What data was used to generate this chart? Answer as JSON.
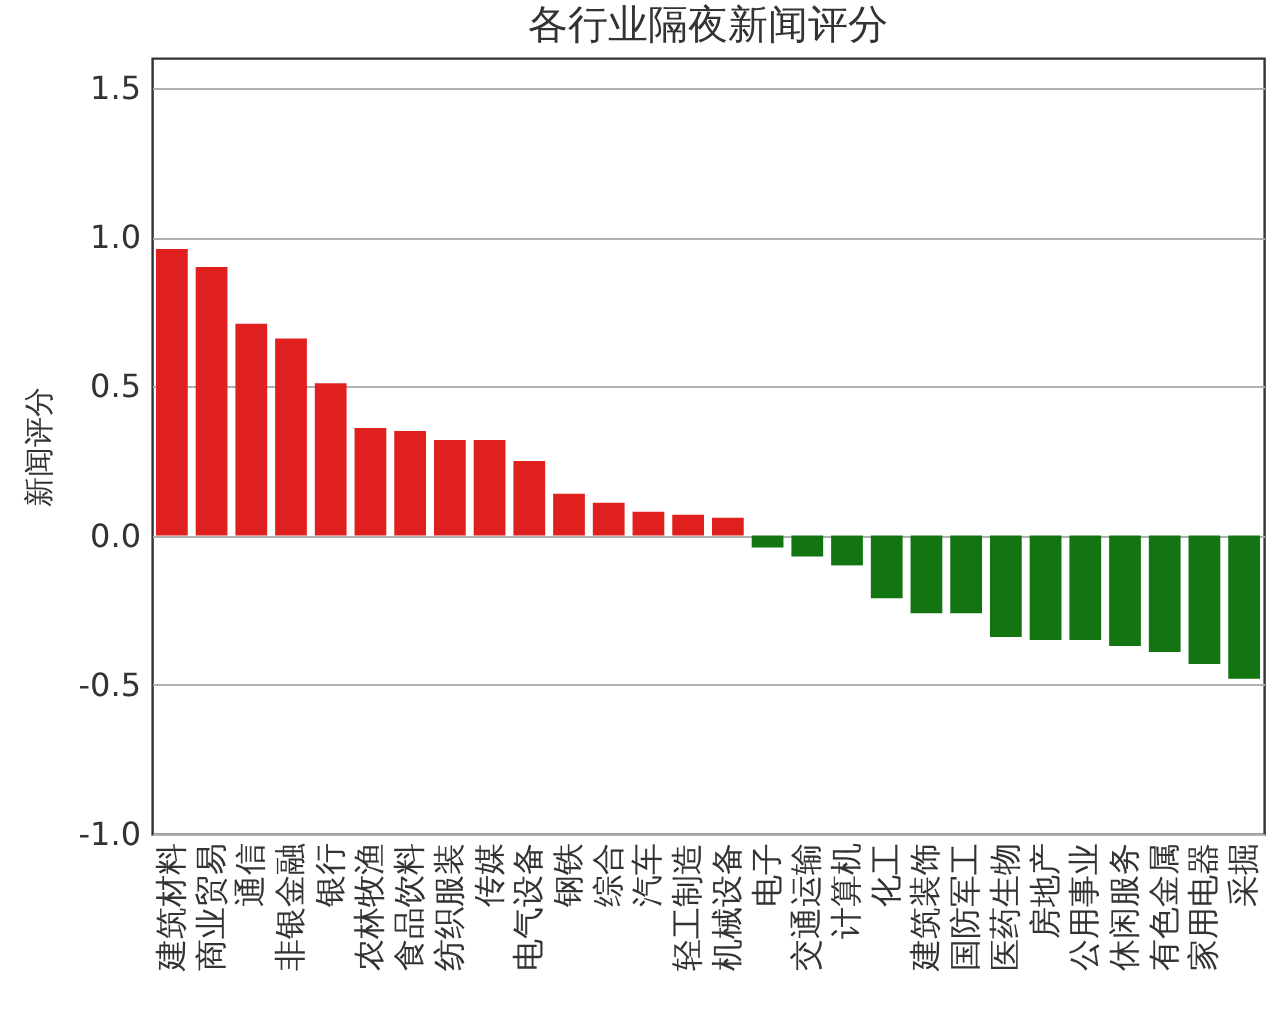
{
  "chart_data": {
    "type": "bar",
    "title": "各行业隔夜新闻评分",
    "ylabel": "新闻评分",
    "categories": [
      "建筑材料",
      "商业贸易",
      "通信",
      "非银金融",
      "银行",
      "农林牧渔",
      "食品饮料",
      "纺织服装",
      "传媒",
      "电气设备",
      "钢铁",
      "综合",
      "汽车",
      "轻工制造",
      "机械设备",
      "电子",
      "交通运输",
      "计算机",
      "化工",
      "建筑装饰",
      "国防军工",
      "医药生物",
      "房地产",
      "公用事业",
      "休闲服务",
      "有色金属",
      "家用电器",
      "采掘"
    ],
    "values": [
      0.96,
      0.9,
      0.71,
      0.66,
      0.51,
      0.36,
      0.35,
      0.32,
      0.32,
      0.25,
      0.14,
      0.11,
      0.08,
      0.07,
      0.06,
      -0.04,
      -0.07,
      -0.1,
      -0.21,
      -0.26,
      -0.26,
      -0.34,
      -0.35,
      -0.35,
      -0.37,
      -0.39,
      -0.43,
      -0.48
    ],
    "colors": [
      "#e0201e",
      "#e0201e",
      "#e0201e",
      "#e0201e",
      "#e0201e",
      "#e0201e",
      "#e0201e",
      "#e0201e",
      "#e0201e",
      "#e0201e",
      "#e0201e",
      "#e0201e",
      "#e0201e",
      "#e0201e",
      "#e0201e",
      "#127512",
      "#127512",
      "#127512",
      "#127512",
      "#127512",
      "#127512",
      "#127512",
      "#127512",
      "#127512",
      "#127512",
      "#127512",
      "#127512",
      "#127512"
    ],
    "ylim": [
      -1.0,
      1.6
    ],
    "yticks": [
      {
        "value": -1,
        "label": "-1.0"
      },
      -0.5,
      {
        "value": 0,
        "label": "0.0"
      },
      0.5,
      {
        "value": 1,
        "label": "1.0"
      },
      1.5
    ],
    "grid": "y"
  }
}
